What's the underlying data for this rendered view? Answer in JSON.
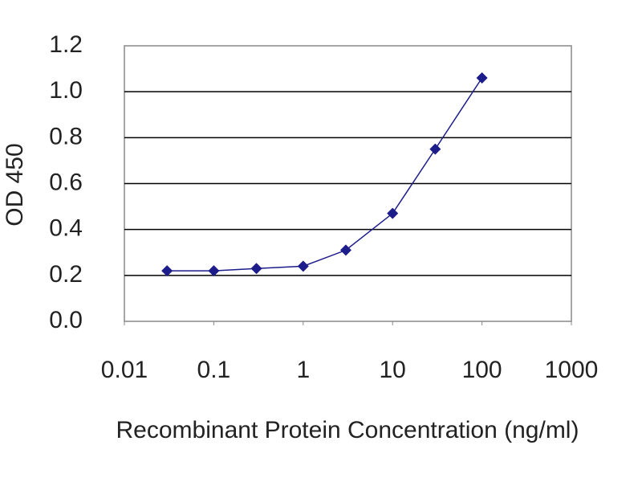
{
  "chart_data": {
    "type": "line",
    "x_label": "Recombinant Protein Concentration (ng/ml)",
    "y_label": "OD 450",
    "x": [
      0.03,
      0.1,
      0.3,
      1,
      3,
      10,
      30,
      100
    ],
    "values": [
      0.22,
      0.22,
      0.23,
      0.24,
      0.31,
      0.47,
      0.75,
      1.06
    ],
    "color": "#1c1c8a",
    "xscale": "log",
    "xlim": [
      0.01,
      1000
    ],
    "xticks": [
      0.01,
      0.1,
      1,
      10,
      100,
      1000
    ],
    "ylim": [
      0,
      1.2
    ],
    "yticks": [
      {
        "value": 0,
        "label": "0.0"
      },
      0.2,
      0.4,
      0.6,
      0.8,
      {
        "value": 1,
        "label": "1.0"
      },
      1.2
    ],
    "grid": true
  }
}
